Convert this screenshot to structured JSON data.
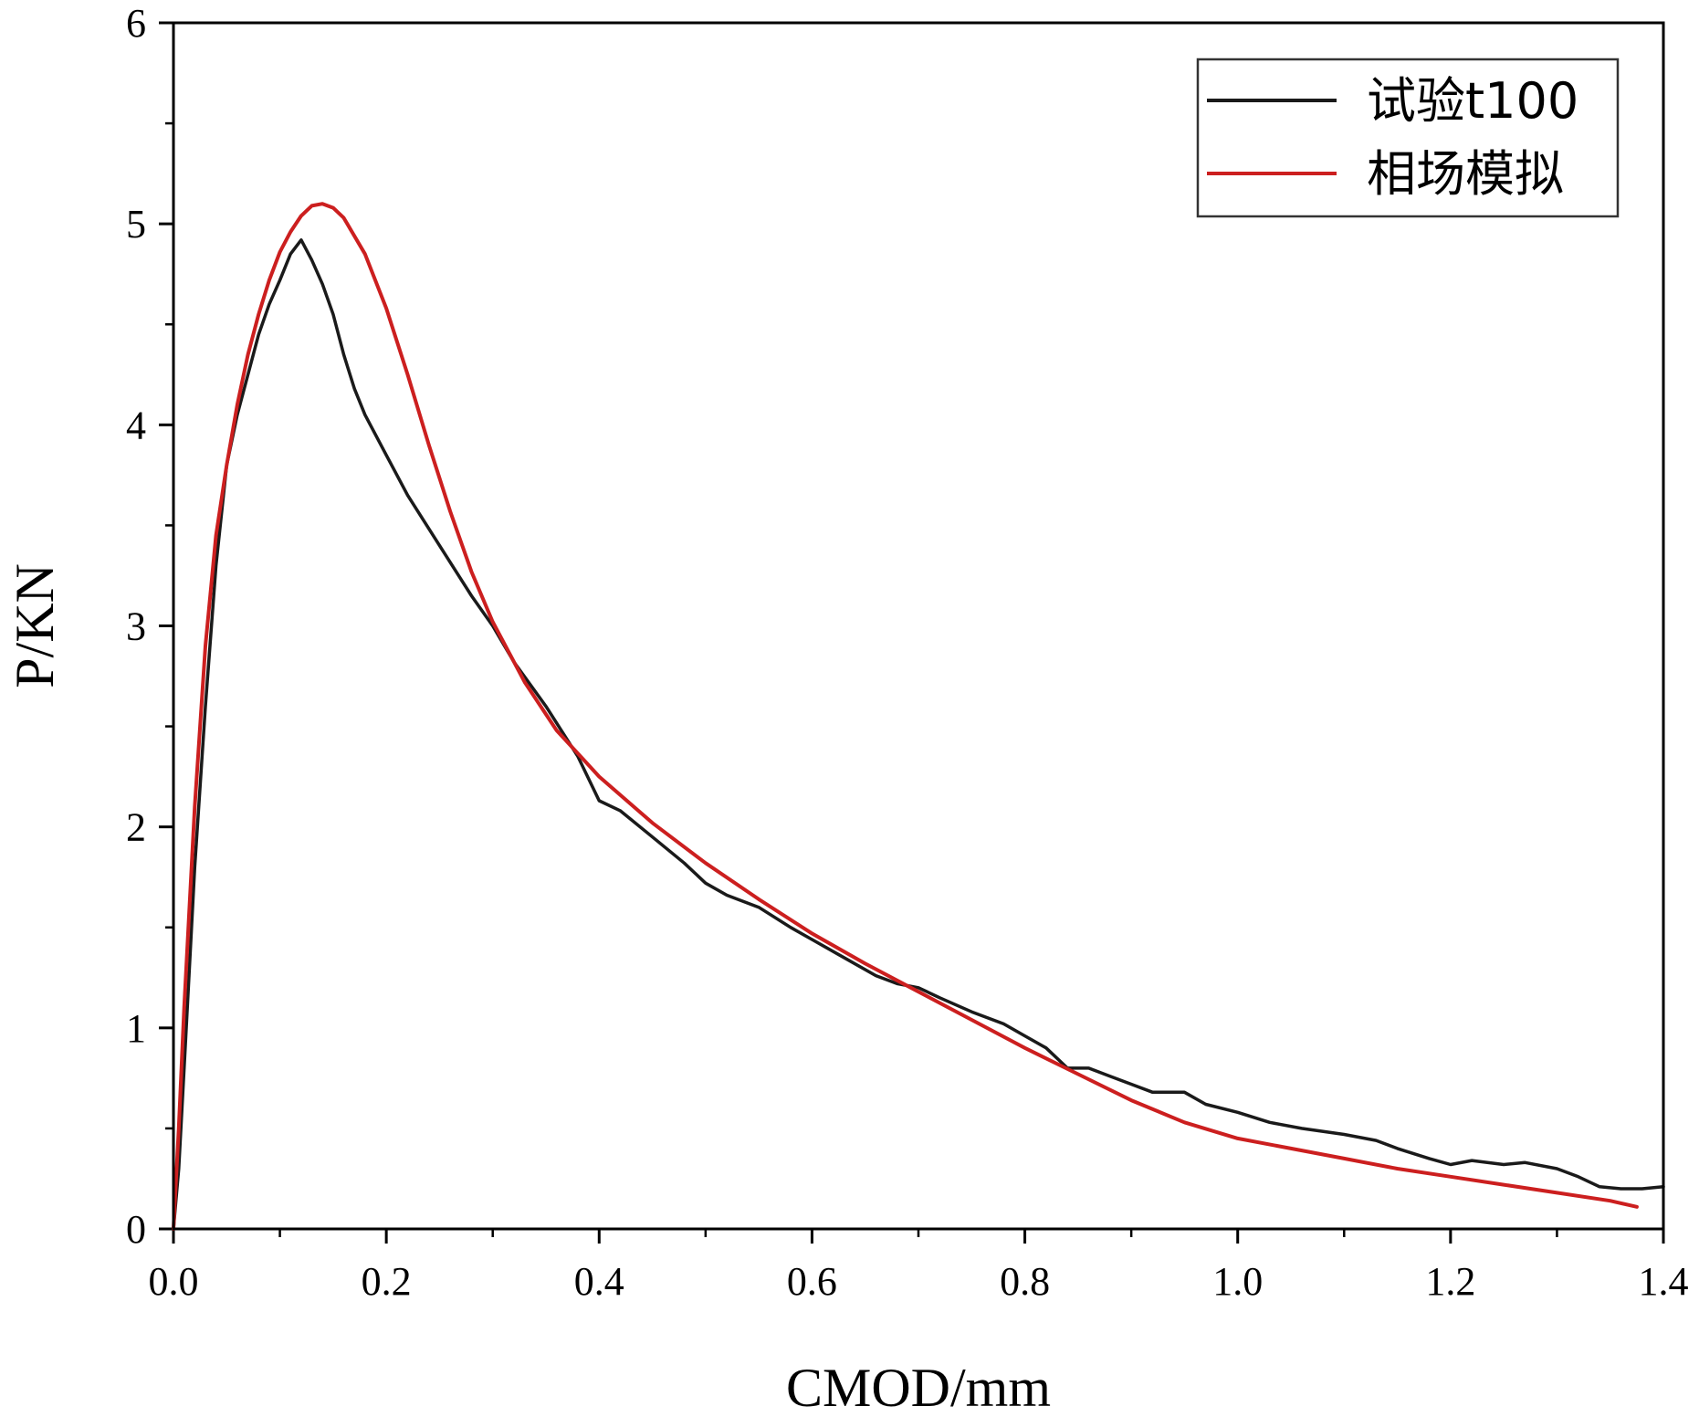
{
  "chart_data": {
    "type": "line",
    "title": "",
    "xlabel": "CMOD/mm",
    "ylabel": "P/KN",
    "xlim": [
      0,
      1.4
    ],
    "ylim": [
      0,
      6
    ],
    "x_ticks": [
      "0.0",
      "0.2",
      "0.4",
      "0.6",
      "0.8",
      "1.0",
      "1.2",
      "1.4"
    ],
    "y_ticks": [
      "0",
      "1",
      "2",
      "3",
      "4",
      "5",
      "6"
    ],
    "legend_position": "top-right",
    "series": [
      {
        "name": "试验t100",
        "color": "#1a1a1a",
        "points": [
          [
            0.0,
            0.0
          ],
          [
            0.005,
            0.3
          ],
          [
            0.01,
            0.8
          ],
          [
            0.02,
            1.8
          ],
          [
            0.03,
            2.6
          ],
          [
            0.04,
            3.3
          ],
          [
            0.05,
            3.8
          ],
          [
            0.06,
            4.05
          ],
          [
            0.07,
            4.25
          ],
          [
            0.08,
            4.45
          ],
          [
            0.09,
            4.6
          ],
          [
            0.1,
            4.72
          ],
          [
            0.11,
            4.85
          ],
          [
            0.12,
            4.92
          ],
          [
            0.13,
            4.82
          ],
          [
            0.14,
            4.7
          ],
          [
            0.15,
            4.55
          ],
          [
            0.16,
            4.35
          ],
          [
            0.17,
            4.18
          ],
          [
            0.18,
            4.05
          ],
          [
            0.2,
            3.85
          ],
          [
            0.22,
            3.65
          ],
          [
            0.25,
            3.4
          ],
          [
            0.28,
            3.15
          ],
          [
            0.3,
            3.0
          ],
          [
            0.32,
            2.82
          ],
          [
            0.35,
            2.6
          ],
          [
            0.38,
            2.35
          ],
          [
            0.4,
            2.13
          ],
          [
            0.42,
            2.08
          ],
          [
            0.45,
            1.95
          ],
          [
            0.48,
            1.82
          ],
          [
            0.5,
            1.72
          ],
          [
            0.52,
            1.66
          ],
          [
            0.55,
            1.6
          ],
          [
            0.58,
            1.5
          ],
          [
            0.6,
            1.44
          ],
          [
            0.63,
            1.35
          ],
          [
            0.66,
            1.26
          ],
          [
            0.68,
            1.22
          ],
          [
            0.7,
            1.2
          ],
          [
            0.72,
            1.15
          ],
          [
            0.75,
            1.08
          ],
          [
            0.78,
            1.02
          ],
          [
            0.8,
            0.96
          ],
          [
            0.82,
            0.9
          ],
          [
            0.84,
            0.8
          ],
          [
            0.86,
            0.8
          ],
          [
            0.88,
            0.76
          ],
          [
            0.9,
            0.72
          ],
          [
            0.92,
            0.68
          ],
          [
            0.95,
            0.68
          ],
          [
            0.97,
            0.62
          ],
          [
            1.0,
            0.58
          ],
          [
            1.03,
            0.53
          ],
          [
            1.06,
            0.5
          ],
          [
            1.1,
            0.47
          ],
          [
            1.13,
            0.44
          ],
          [
            1.15,
            0.4
          ],
          [
            1.18,
            0.35
          ],
          [
            1.2,
            0.32
          ],
          [
            1.22,
            0.34
          ],
          [
            1.25,
            0.32
          ],
          [
            1.27,
            0.33
          ],
          [
            1.3,
            0.3
          ],
          [
            1.32,
            0.26
          ],
          [
            1.34,
            0.21
          ],
          [
            1.36,
            0.2
          ],
          [
            1.38,
            0.2
          ],
          [
            1.4,
            0.21
          ]
        ]
      },
      {
        "name": "相场模拟",
        "color": "#cc1f1f",
        "points": [
          [
            0.0,
            0.0
          ],
          [
            0.005,
            0.5
          ],
          [
            0.01,
            1.1
          ],
          [
            0.02,
            2.1
          ],
          [
            0.03,
            2.9
          ],
          [
            0.04,
            3.45
          ],
          [
            0.05,
            3.8
          ],
          [
            0.06,
            4.1
          ],
          [
            0.07,
            4.35
          ],
          [
            0.08,
            4.55
          ],
          [
            0.09,
            4.72
          ],
          [
            0.1,
            4.86
          ],
          [
            0.11,
            4.96
          ],
          [
            0.12,
            5.04
          ],
          [
            0.13,
            5.09
          ],
          [
            0.14,
            5.1
          ],
          [
            0.15,
            5.08
          ],
          [
            0.16,
            5.03
          ],
          [
            0.18,
            4.85
          ],
          [
            0.2,
            4.58
          ],
          [
            0.22,
            4.25
          ],
          [
            0.24,
            3.9
          ],
          [
            0.26,
            3.57
          ],
          [
            0.28,
            3.27
          ],
          [
            0.3,
            3.02
          ],
          [
            0.33,
            2.72
          ],
          [
            0.36,
            2.48
          ],
          [
            0.4,
            2.25
          ],
          [
            0.45,
            2.02
          ],
          [
            0.5,
            1.82
          ],
          [
            0.55,
            1.64
          ],
          [
            0.6,
            1.47
          ],
          [
            0.65,
            1.32
          ],
          [
            0.7,
            1.18
          ],
          [
            0.75,
            1.04
          ],
          [
            0.8,
            0.9
          ],
          [
            0.85,
            0.77
          ],
          [
            0.9,
            0.64
          ],
          [
            0.95,
            0.53
          ],
          [
            1.0,
            0.45
          ],
          [
            1.05,
            0.4
          ],
          [
            1.1,
            0.35
          ],
          [
            1.15,
            0.3
          ],
          [
            1.2,
            0.26
          ],
          [
            1.25,
            0.22
          ],
          [
            1.3,
            0.18
          ],
          [
            1.35,
            0.14
          ],
          [
            1.375,
            0.11
          ]
        ]
      }
    ]
  }
}
